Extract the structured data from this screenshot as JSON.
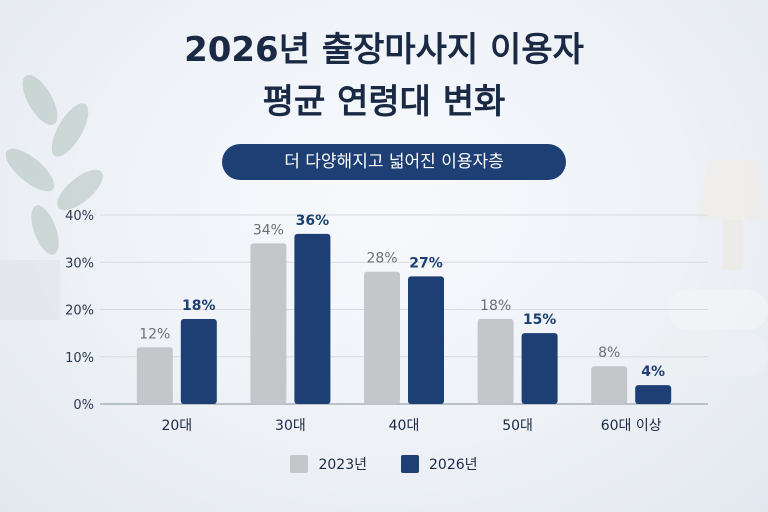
{
  "header": {
    "title_line1": "2026년 출장마사지 이용자",
    "title_line2": "평균 연령대 변화",
    "subtitle": "더 다양해지고 넓어진 이용자층"
  },
  "colors": {
    "series_2023": "#c4c6ca",
    "series_2026": "#1d3f73",
    "label_2023": "#6d6f73",
    "label_2026": "#1d3f73"
  },
  "chart_data": {
    "type": "bar",
    "title": "",
    "xlabel": "",
    "ylabel": "",
    "categories": [
      "20대",
      "30대",
      "40대",
      "50대",
      "60대 이상"
    ],
    "series": [
      {
        "name": "2023년",
        "values": [
          12,
          34,
          28,
          18,
          8
        ]
      },
      {
        "name": "2026년",
        "values": [
          18,
          36,
          27,
          15,
          4
        ]
      }
    ],
    "ylim": [
      0,
      40
    ],
    "yticks": [
      "0%",
      "10%",
      "20%",
      "30%",
      "40%"
    ],
    "ytick_values": [
      0,
      10,
      20,
      30,
      40
    ],
    "value_suffix": "%",
    "grid": true,
    "legend": "bottom-center"
  }
}
